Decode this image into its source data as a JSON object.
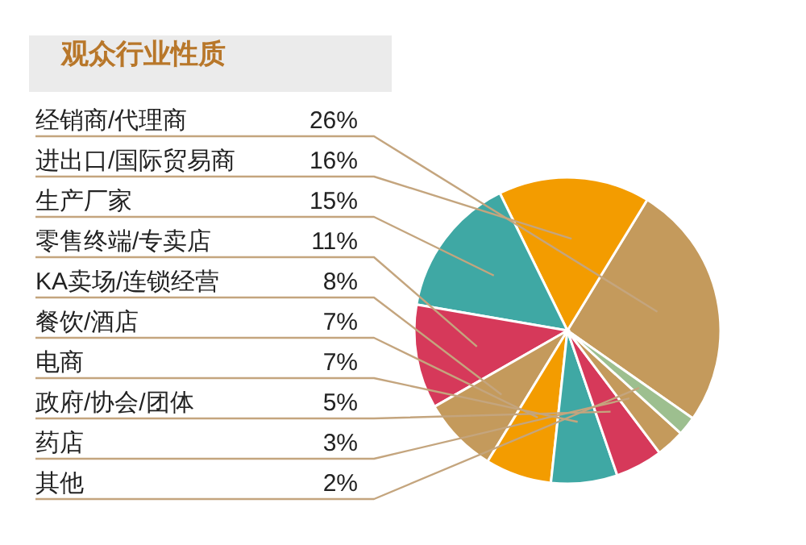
{
  "chart_data": {
    "type": "pie",
    "title": "观众行业性质",
    "categories": [
      "经销商/代理商",
      "进出口/国际贸易商",
      "生产厂家",
      "零售终端/专卖店",
      "KA卖场/连锁经营",
      "餐饮/酒店",
      "电商",
      "政府/协会/团体",
      "药店",
      "其他"
    ],
    "values": [
      26,
      16,
      15,
      11,
      8,
      7,
      7,
      5,
      3,
      2
    ],
    "value_labels": [
      "26%",
      "16%",
      "15%",
      "11%",
      "8%",
      "7%",
      "7%",
      "5%",
      "3%",
      "2%"
    ],
    "colors": [
      "#c49a5c",
      "#f39c00",
      "#3fa8a4",
      "#d6395a",
      "#c49a5c",
      "#f39c00",
      "#3fa8a4",
      "#d6395a",
      "#c49a5c",
      "#9dbf8f"
    ]
  }
}
